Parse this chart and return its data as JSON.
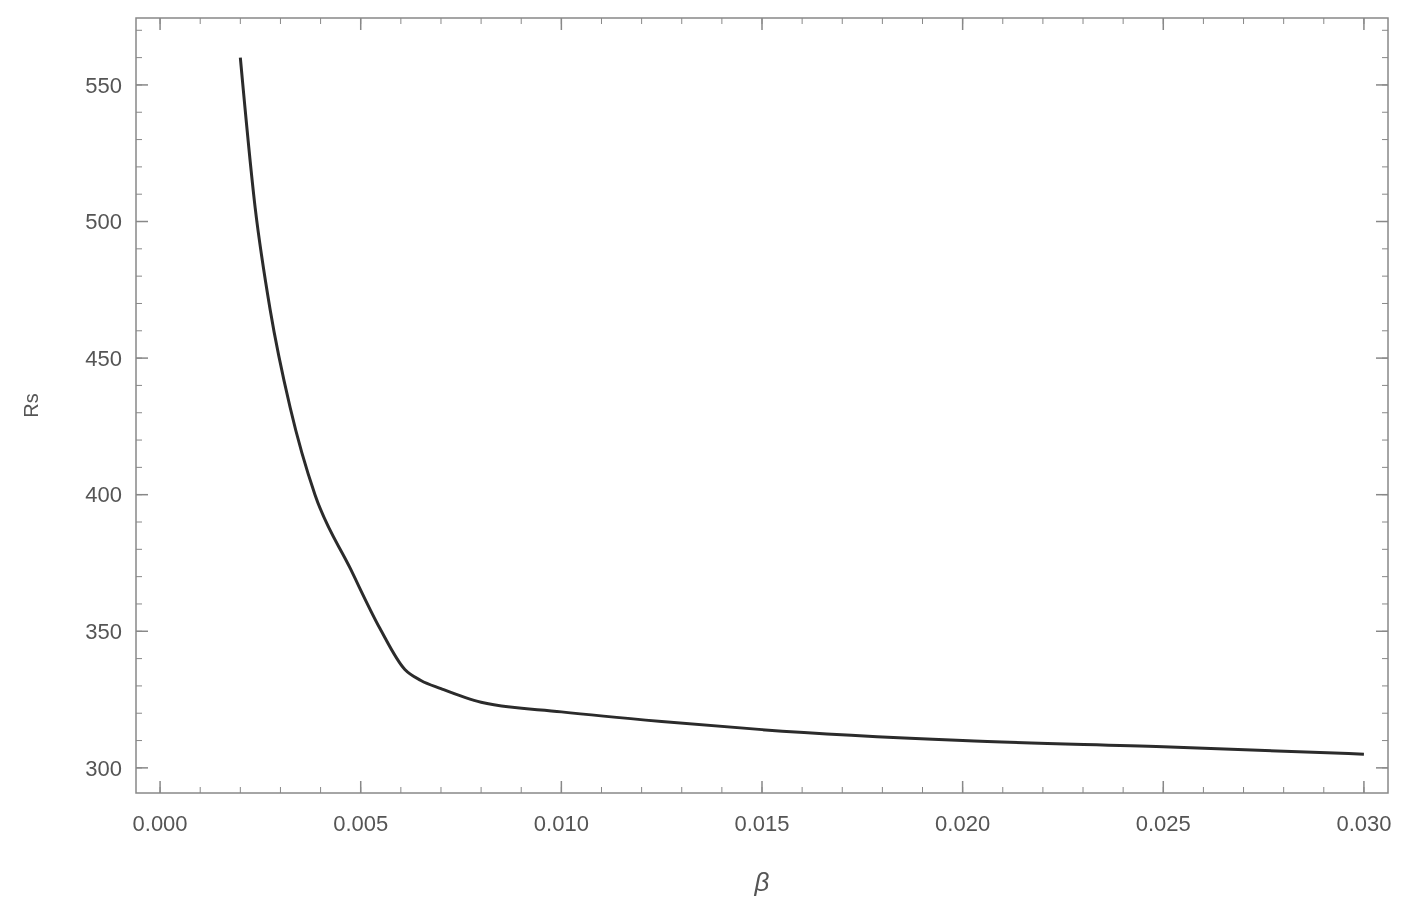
{
  "chart_data": {
    "type": "line",
    "xlabel": "β",
    "ylabel": "Rs",
    "xlim": [
      -0.0006,
      0.0306
    ],
    "ylim": [
      290.8,
      574.5
    ],
    "xticks": [
      {
        "value": 0,
        "label": "0.000"
      },
      {
        "value": 0.005,
        "label": "0.005"
      },
      {
        "value": 0.01,
        "label": "0.010"
      },
      {
        "value": 0.015,
        "label": "0.015"
      },
      {
        "value": 0.02,
        "label": "0.020"
      },
      {
        "value": 0.025,
        "label": "0.025"
      },
      {
        "value": 0.03,
        "label": "0.030"
      }
    ],
    "yticks": [
      300,
      350,
      400,
      450,
      500,
      550
    ],
    "series": [
      {
        "color": "#2b2b2b",
        "x": [
          0.002,
          0.00237,
          0.00274,
          0.00324,
          0.00386,
          0.00474,
          0.00548,
          0.0061,
          0.0065,
          0.007,
          0.008,
          0.01,
          0.0125,
          0.015,
          0.02,
          0.025,
          0.03
        ],
        "values": [
          560,
          505,
          468,
          432,
          400,
          373,
          351,
          336,
          332,
          329,
          324,
          320.5,
          317,
          314,
          310,
          307.7,
          305
        ]
      }
    ],
    "grid": false,
    "line_style": "solid"
  }
}
